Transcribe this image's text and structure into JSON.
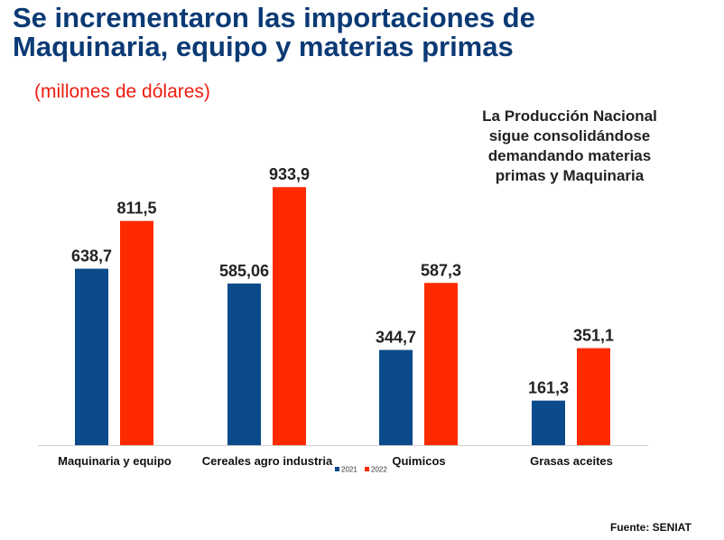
{
  "title_line1": "Se incrementaron las importaciones de",
  "title_line2": "Maquinaria, equipo y materias primas",
  "subtitle": "(millones de dólares)",
  "note_lines": [
    "La Producción Nacional",
    "sigue consolidándose",
    "demandando materias",
    "primas y Maquinaria"
  ],
  "source": "Fuente: SENIAT",
  "colors": {
    "title": "#0b3a75",
    "s2021": "#0b4a8b",
    "s2022": "#ff2a00",
    "subtitle": "#ee1c10"
  },
  "chart_data": {
    "type": "bar",
    "categories": [
      "Maquinaria y equipo",
      "Cereales agro industria",
      "Quimicos",
      "Grasas aceites"
    ],
    "series": [
      {
        "name": "2021",
        "values": [
          638.7,
          585.06,
          344.7,
          161.3
        ],
        "labels": [
          "638,7",
          "585,06",
          "344,7",
          "161,3"
        ]
      },
      {
        "name": "2022",
        "values": [
          811.5,
          933.9,
          587.3,
          351.1
        ],
        "labels": [
          "811,5",
          "933,9",
          "587,3",
          "351,1"
        ]
      }
    ],
    "ylim": [
      0,
      1000
    ],
    "legend": "bottom-center",
    "grid": false
  }
}
